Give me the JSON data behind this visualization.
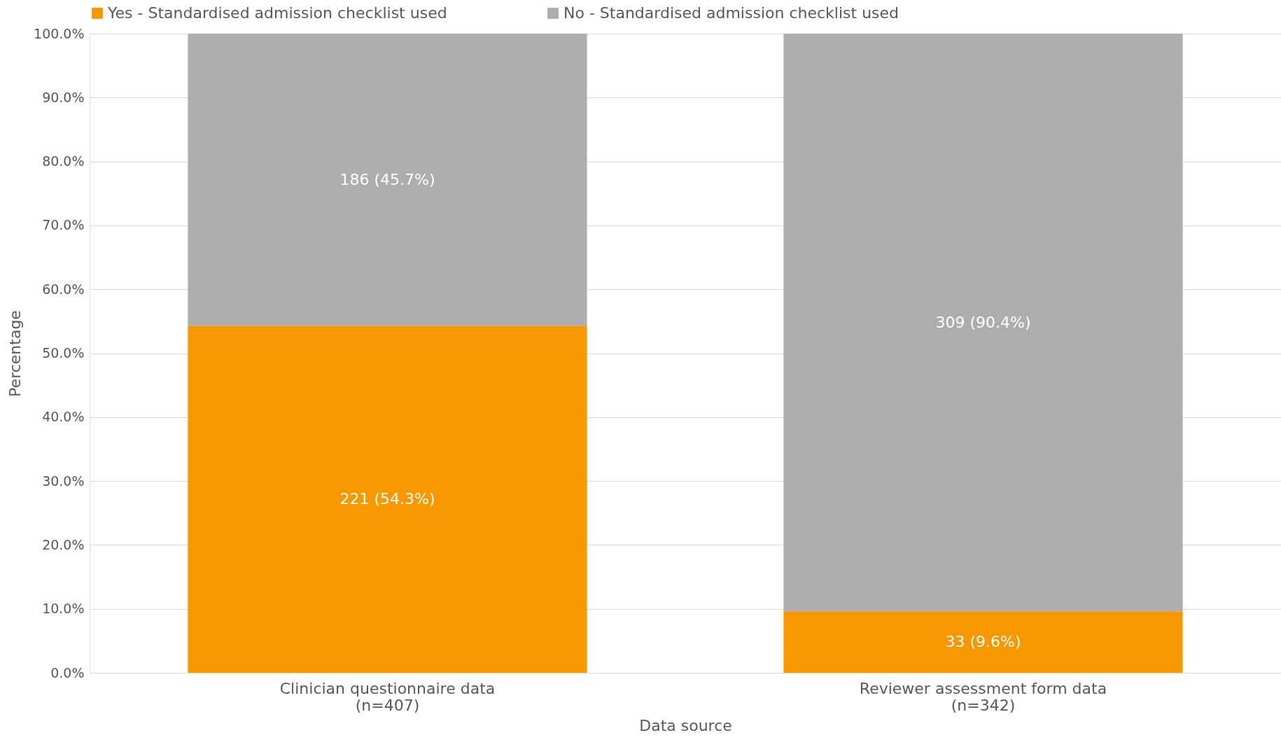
{
  "chart_data": {
    "type": "bar",
    "stacked": true,
    "xlabel": "Data source",
    "ylabel": "Percentage",
    "categories": [
      "Clinician questionnaire data\n(n=407)",
      "Reviewer assessment form data\n(n=342)"
    ],
    "series": [
      {
        "name": "Yes - Standardised admission checklist used",
        "color": "#f79800",
        "values": [
          54.3,
          9.6
        ],
        "value_labels": [
          "221 (54.3%)",
          "33 (9.6%)"
        ]
      },
      {
        "name": "No - Standardised admission checklist used",
        "color": "#adadad",
        "values": [
          45.7,
          90.4
        ],
        "value_labels": [
          "186 (45.7%)",
          "309 (90.4%)"
        ]
      }
    ],
    "ylim": [
      0,
      100
    ],
    "yticks": [
      {
        "value": 0,
        "label": "0.0%"
      },
      {
        "value": 10,
        "label": "10.0%"
      },
      {
        "value": 20,
        "label": "20.0%"
      },
      {
        "value": 30,
        "label": "30.0%"
      },
      {
        "value": 40,
        "label": "40.0%"
      },
      {
        "value": 50,
        "label": "50.0%"
      },
      {
        "value": 60,
        "label": "60.0%"
      },
      {
        "value": 70,
        "label": "70.0%"
      },
      {
        "value": 80,
        "label": "80.0%"
      },
      {
        "value": 90,
        "label": "90.0%"
      },
      {
        "value": 100,
        "label": "100.0%"
      }
    ],
    "grid": "y",
    "legend": "top"
  }
}
